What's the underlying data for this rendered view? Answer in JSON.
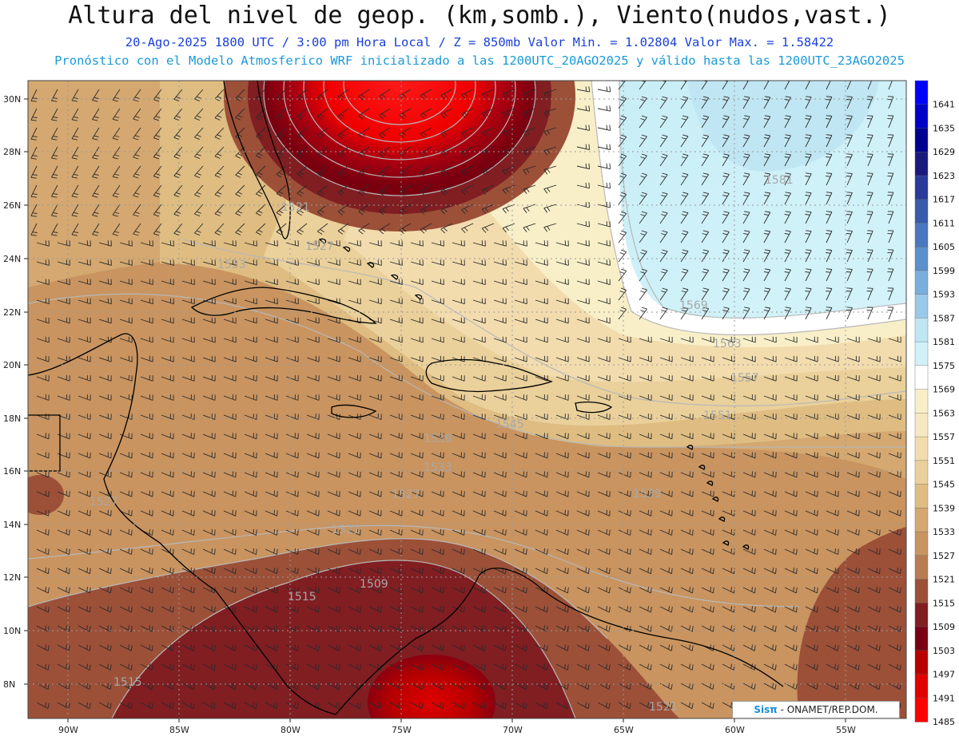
{
  "header": {
    "title": "Altura del nivel de geop. (km,somb.), Viento(nudos,vast.)",
    "line1": "20-Ago-2025  1800 UTC / 3:00 pm Hora Local / Z = 850mb     Valor Min. = 1.02804  Valor Max. = 1.58422",
    "line2": "Pronóstico con el Modelo Atmosferico WRF inicializado a las 1200UTC_20AGO2025 y válido hasta las  1200UTC_23AGO2025"
  },
  "axes": {
    "lat_labels": [
      "30N",
      "28N",
      "26N",
      "24N",
      "22N",
      "20N",
      "18N",
      "16N",
      "14N",
      "12N",
      "10N",
      "8N"
    ],
    "lon_labels": [
      "90W",
      "85W",
      "80W",
      "75W",
      "70W",
      "65W",
      "60W",
      "55W"
    ]
  },
  "colorbar": {
    "levels": [
      "1641",
      "1635",
      "1629",
      "1623",
      "1617",
      "1611",
      "1605",
      "1599",
      "1593",
      "1587",
      "1581",
      "1575",
      "1569",
      "1563",
      "1557",
      "1551",
      "1545",
      "1539",
      "1533",
      "1527",
      "1521",
      "1515",
      "1509",
      "1503",
      "1497",
      "1491",
      "1485"
    ],
    "colors": [
      "#0000ff",
      "#0000c8",
      "#000090",
      "#1a1a7e",
      "#2a3a9a",
      "#3a5aac",
      "#4a78c0",
      "#5a90cc",
      "#7aaedc",
      "#9ac8e8",
      "#bfe6f2",
      "#d0f1f8",
      "#ffffff",
      "#f8efc8",
      "#f6e8c2",
      "#f2dcae",
      "#ead09a",
      "#dfbd82",
      "#d4a870",
      "#c99460",
      "#b87c50",
      "#9c5038",
      "#801e22",
      "#780012",
      "#b80000",
      "#e00000",
      "#ff0000"
    ]
  },
  "contour_labels": [
    "1521",
    "1527",
    "1533",
    "1581",
    "1569",
    "1563",
    "1557",
    "1551",
    "1545",
    "1539",
    "1527",
    "1533",
    "1539",
    "1521",
    "1509",
    "1515",
    "1515",
    "1521",
    "1527"
  ],
  "credit": {
    "logo": "Sisπ",
    "text": " - ONAMET/REP.DOM."
  }
}
